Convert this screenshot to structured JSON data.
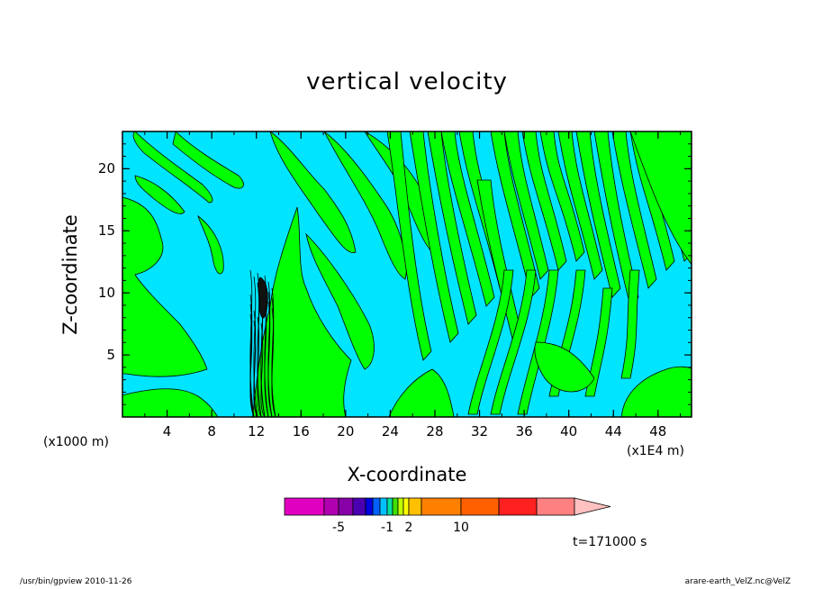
{
  "chart_data": {
    "type": "heatmap",
    "title": "vertical velocity",
    "xlabel": "X-coordinate",
    "ylabel": "Z-coordinate",
    "x_unit_left": "(x1000 m)",
    "x_unit_right": "(x1E4 m)",
    "x_ticks": [
      "4",
      "8",
      "12",
      "16",
      "20",
      "24",
      "28",
      "32",
      "36",
      "40",
      "44",
      "48"
    ],
    "y_ticks": [
      "5",
      "10",
      "15",
      "20"
    ],
    "xlim": [
      0,
      51
    ],
    "ylim": [
      0,
      23
    ],
    "time_label": "t=171000 s",
    "colorbar": {
      "labels": [
        "-5",
        "-1",
        "2",
        "10"
      ],
      "colors": [
        "#e000c0",
        "#b000b0",
        "#8800a8",
        "#4a00b0",
        "#0000e0",
        "#0060ff",
        "#00c0ff",
        "#00e0a0",
        "#40e000",
        "#c0ff00",
        "#ffff00",
        "#ffc000",
        "#ff8000",
        "#ff6000",
        "#ff2020",
        "#ff8080",
        "#ffc0c0"
      ]
    },
    "colors": {
      "positive_fill": "#00ff00",
      "negative_fill": "#00e5ff",
      "strong_updraft": "#ff3030"
    }
  },
  "footer": {
    "left": "/usr/bin/gpview   2010-11-26",
    "right": "arare-earth_VelZ.nc@VelZ"
  }
}
